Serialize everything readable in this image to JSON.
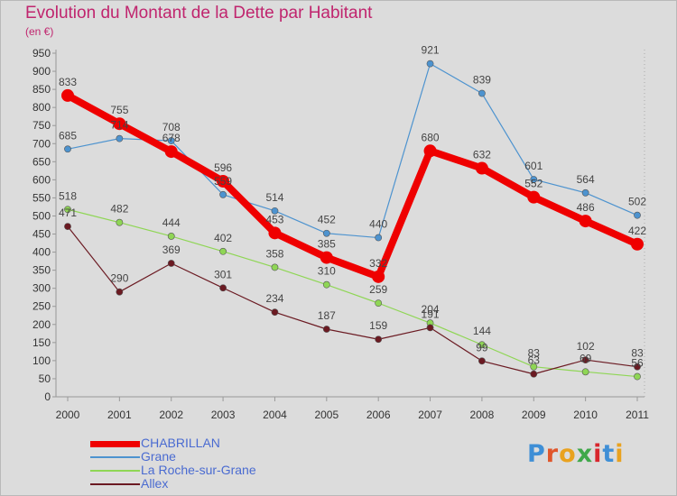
{
  "header": {
    "title": "Evolution du Montant de la Dette par Habitant",
    "unit": "(en €)"
  },
  "logo": {
    "text": "Proxiti",
    "colors": [
      "#3f8fd6",
      "#e0562b",
      "#e9a21f",
      "#3fa84a",
      "#d8262d",
      "#3f8fd6",
      "#e9a21f"
    ]
  },
  "chart_data": {
    "type": "line",
    "title": "Evolution du Montant de la Dette par Habitant",
    "subtitle": "(en €)",
    "xlabel": "",
    "ylabel": "",
    "x": [
      "2000",
      "2001",
      "2002",
      "2003",
      "2004",
      "2005",
      "2006",
      "2007",
      "2008",
      "2009",
      "2010",
      "2011"
    ],
    "ylim": [
      0,
      950
    ],
    "yticks": [
      0,
      50,
      100,
      150,
      200,
      250,
      300,
      350,
      400,
      450,
      500,
      550,
      600,
      650,
      700,
      750,
      800,
      850,
      900,
      950
    ],
    "grid": false,
    "legend_position": "bottom-left",
    "series": [
      {
        "name": "CHABRILLAN",
        "color": "#ef0000",
        "style": "thick",
        "values": [
          833,
          755,
          678,
          596,
          453,
          385,
          332,
          680,
          632,
          552,
          486,
          422
        ],
        "labels": [
          "833",
          "755",
          "678",
          "596",
          "453",
          "385",
          "332",
          "680",
          "632",
          "552",
          "486",
          "422"
        ]
      },
      {
        "name": "Grane",
        "color": "#4d93cf",
        "style": "thin",
        "values": [
          685,
          714,
          708,
          559,
          514,
          452,
          440,
          921,
          839,
          601,
          564,
          502
        ],
        "labels": [
          "685",
          "714",
          "708",
          "559",
          "514",
          "452",
          "440",
          "921",
          "839",
          "601",
          "564",
          "502"
        ]
      },
      {
        "name": "La Roche-sur-Grane",
        "color": "#8fd655",
        "style": "thin",
        "values": [
          518,
          482,
          444,
          402,
          358,
          310,
          259,
          204,
          144,
          83,
          69,
          56
        ],
        "labels": [
          "518",
          "482",
          "444",
          "402",
          "358",
          "310",
          "259",
          "204",
          "144",
          "83",
          "69",
          "56"
        ]
      },
      {
        "name": "Allex",
        "color": "#6b1a22",
        "style": "thin",
        "values": [
          471,
          290,
          369,
          301,
          234,
          187,
          159,
          191,
          99,
          63,
          102,
          83
        ],
        "labels": [
          "471",
          "290",
          "369",
          "301",
          "234",
          "187",
          "159",
          "191",
          "99",
          "63",
          "102",
          "83"
        ]
      }
    ]
  }
}
